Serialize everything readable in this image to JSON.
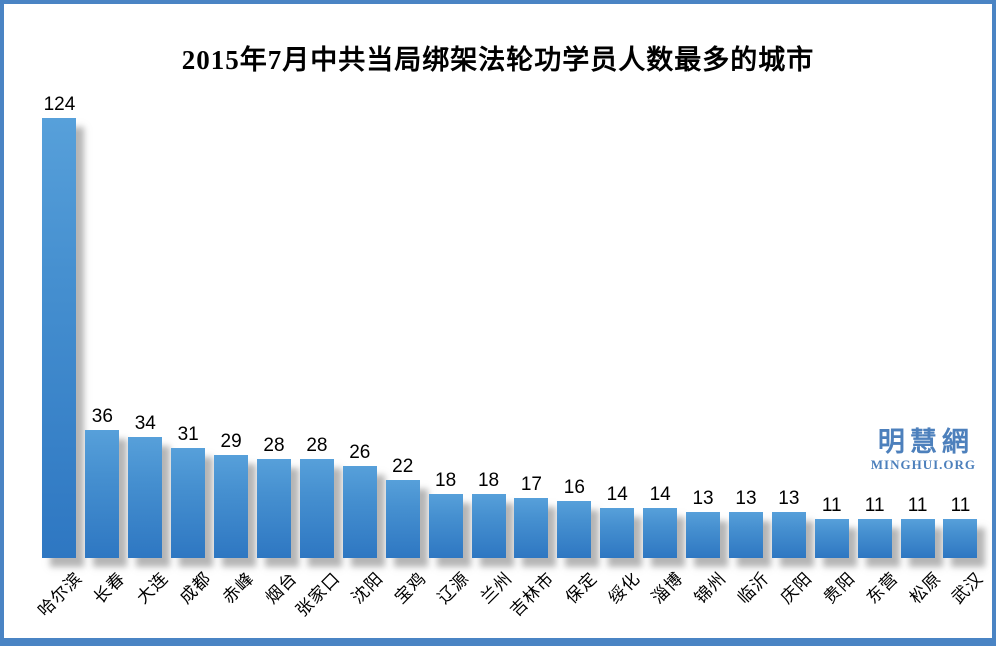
{
  "title": "2015年7月中共当局绑架法轮功学员人数最多的城市",
  "watermark": {
    "cjk": "明慧網",
    "latin": "MINGHUI.ORG",
    "color": "#4d80bc"
  },
  "colors": {
    "frame_border": "#4a84c4",
    "bar_top": "#57a0da",
    "bar_bottom": "#2e77c2",
    "title_text": "#000000",
    "label_text": "#000000",
    "background": "#ffffff"
  },
  "chart_data": {
    "type": "bar",
    "title": "2015年7月中共当局绑架法轮功学员人数最多的城市",
    "categories": [
      "哈尔滨",
      "长春",
      "大连",
      "成都",
      "赤峰",
      "烟台",
      "张家口",
      "沈阳",
      "宝鸡",
      "辽源",
      "兰州",
      "吉林市",
      "保定",
      "绥化",
      "淄博",
      "锦州",
      "临沂",
      "庆阳",
      "贵阳",
      "东营",
      "松原",
      "武汉"
    ],
    "values": [
      124,
      36,
      34,
      31,
      29,
      28,
      28,
      26,
      22,
      18,
      18,
      17,
      16,
      14,
      14,
      13,
      13,
      13,
      11,
      11,
      11,
      11
    ],
    "xlabel": "",
    "ylabel": "",
    "ylim": [
      0,
      124
    ],
    "grid": false,
    "legend": "none",
    "value_labels": true,
    "x_tick_rotation_deg": 45
  }
}
